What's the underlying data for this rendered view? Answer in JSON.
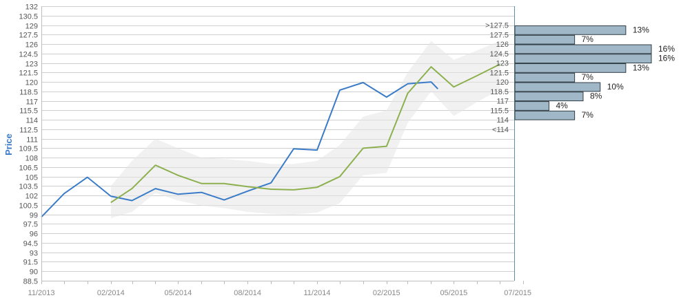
{
  "chart_data": {
    "type": "line",
    "ylabel": "Price",
    "ylim": [
      88.5,
      132
    ],
    "yticks": [
      88.5,
      90,
      91.5,
      93,
      94.5,
      96,
      97.5,
      99,
      100.5,
      102,
      103.5,
      105,
      106.5,
      108,
      109.5,
      111,
      112.5,
      114,
      115.5,
      117,
      118.5,
      120,
      121.5,
      123,
      124.5,
      126,
      127.5,
      129,
      130.5,
      132
    ],
    "xticks": [
      "11/2013",
      "02/2014",
      "05/2014",
      "08/2014",
      "11/2014",
      "02/2015",
      "05/2015",
      "07/2015"
    ],
    "series": [
      {
        "color": "#3a7bc8",
        "points": [
          [
            "2013-11-01",
            98.6
          ],
          [
            "2013-12-01",
            102.3
          ],
          [
            "2014-01-01",
            104.9
          ],
          [
            "2014-02-01",
            101.9
          ],
          [
            "2014-03-01",
            101.2
          ],
          [
            "2014-04-01",
            103.1
          ],
          [
            "2014-05-01",
            102.2
          ],
          [
            "2014-06-01",
            102.5
          ],
          [
            "2014-07-01",
            101.3
          ],
          [
            "2014-08-01",
            102.7
          ],
          [
            "2014-09-01",
            104.0
          ],
          [
            "2014-10-01",
            109.4
          ],
          [
            "2014-11-01",
            109.2
          ],
          [
            "2014-12-01",
            118.7
          ],
          [
            "2015-01-01",
            119.9
          ],
          [
            "2015-02-01",
            117.6
          ],
          [
            "2015-03-01",
            119.7
          ],
          [
            "2015-04-01",
            120.0
          ],
          [
            "2015-04-10",
            118.9
          ]
        ]
      },
      {
        "color": "#8cb04e",
        "points": [
          [
            "2014-02-01",
            100.9
          ],
          [
            "2014-03-01",
            103.1
          ],
          [
            "2014-04-01",
            106.8
          ],
          [
            "2014-05-01",
            105.2
          ],
          [
            "2014-06-01",
            103.9
          ],
          [
            "2014-07-01",
            103.9
          ],
          [
            "2014-08-01",
            103.4
          ],
          [
            "2014-09-01",
            103.0
          ],
          [
            "2014-10-01",
            102.9
          ],
          [
            "2014-11-01",
            103.3
          ],
          [
            "2014-12-01",
            105.0
          ],
          [
            "2015-01-01",
            109.5
          ],
          [
            "2015-02-01",
            109.8
          ],
          [
            "2015-03-01",
            118.2
          ],
          [
            "2015-04-01",
            122.4
          ],
          [
            "2015-05-01",
            119.2
          ],
          [
            "2015-06-01",
            121.0
          ],
          [
            "2015-07-01",
            122.8
          ]
        ]
      }
    ],
    "band": {
      "color": "#e6e6e6",
      "upper": [
        [
          "2014-02-01",
          103.5
        ],
        [
          "2014-03-01",
          107.5
        ],
        [
          "2014-04-01",
          111.0
        ],
        [
          "2014-05-01",
          109.5
        ],
        [
          "2014-06-01",
          108.0
        ],
        [
          "2014-07-01",
          107.8
        ],
        [
          "2014-08-01",
          107.5
        ],
        [
          "2014-09-01",
          107.0
        ],
        [
          "2014-10-01",
          107.0
        ],
        [
          "2014-11-01",
          107.5
        ],
        [
          "2014-12-01",
          110.0
        ],
        [
          "2015-01-01",
          114.5
        ],
        [
          "2015-02-01",
          115.5
        ],
        [
          "2015-03-01",
          121.5
        ],
        [
          "2015-04-01",
          126.5
        ],
        [
          "2015-05-01",
          123.5
        ],
        [
          "2015-06-01",
          125.0
        ],
        [
          "2015-07-01",
          126.5
        ]
      ],
      "lower": [
        [
          "2014-02-01",
          98.4
        ],
        [
          "2014-03-01",
          99.4
        ],
        [
          "2014-04-01",
          102.4
        ],
        [
          "2014-05-01",
          101.2
        ],
        [
          "2014-06-01",
          100.4
        ],
        [
          "2014-07-01",
          100.0
        ],
        [
          "2014-08-01",
          99.4
        ],
        [
          "2014-09-01",
          99.1
        ],
        [
          "2014-10-01",
          99.0
        ],
        [
          "2014-11-01",
          99.3
        ],
        [
          "2014-12-01",
          100.8
        ],
        [
          "2015-01-01",
          105.2
        ],
        [
          "2015-02-01",
          105.6
        ],
        [
          "2015-03-01",
          113.5
        ],
        [
          "2015-04-01",
          118.5
        ],
        [
          "2015-05-01",
          114.6
        ],
        [
          "2015-06-01",
          116.8
        ],
        [
          "2015-07-01",
          118.8
        ]
      ]
    },
    "histogram": {
      "color": "#9fb7c6",
      "bins": [
        {
          "label": ">127.5",
          "from": 127.5,
          "to": 129,
          "pct": 13,
          "pct_label": "13%"
        },
        {
          "label": "127.5",
          "from": 126,
          "to": 127.5,
          "pct": 7,
          "pct_label": "7%"
        },
        {
          "label": "126",
          "from": 124.5,
          "to": 126,
          "pct": 16,
          "pct_label": "16%"
        },
        {
          "label": "124.5",
          "from": 123,
          "to": 124.5,
          "pct": 16,
          "pct_label": "16%"
        },
        {
          "label": "123",
          "from": 121.5,
          "to": 123,
          "pct": 13,
          "pct_label": "13%"
        },
        {
          "label": "121.5",
          "from": 120,
          "to": 121.5,
          "pct": 7,
          "pct_label": "7%"
        },
        {
          "label": "120",
          "from": 118.5,
          "to": 120,
          "pct": 10,
          "pct_label": "10%"
        },
        {
          "label": "118.5",
          "from": 117,
          "to": 118.5,
          "pct": 8,
          "pct_label": "8%"
        },
        {
          "label": "117",
          "from": 115.5,
          "to": 117,
          "pct": 4,
          "pct_label": "4%"
        },
        {
          "label": "115.5",
          "from": 114,
          "to": 115.5,
          "pct": 7,
          "pct_label": "7%"
        },
        {
          "label": "114",
          "from": 112.5,
          "to": 114,
          "pct": null,
          "pct_label": ""
        },
        {
          "label": "<114",
          "from": 111,
          "to": 112.5,
          "pct": null,
          "pct_label": ""
        }
      ]
    },
    "grid": true
  }
}
